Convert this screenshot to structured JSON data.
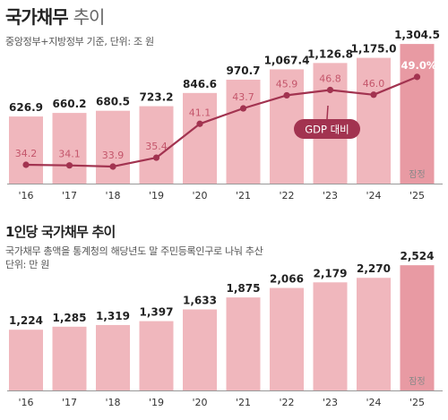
{
  "colors": {
    "bar": "#f0b7bd",
    "bar_last": "#e89aa3",
    "line": "#a23350",
    "label_in_bar": "#c4566b",
    "baseline": "#999999"
  },
  "header": {
    "title_main": "국가채무",
    "title_light": "추이",
    "subtitle": "중앙정부+지방정부 기준, 단위: 조 원"
  },
  "section2": {
    "title": "1인당 국가채무 추이",
    "note": "국가채무 총액을 통계청의 해당년도 말 주민등록인구로 나눠 추산",
    "unit": "단위: 만 원"
  },
  "chart_data": [
    {
      "type": "bar",
      "title": "국가채무 추이",
      "subtitle": "중앙정부+지방정부 기준, 단위: 조 원",
      "categories": [
        "'16",
        "'17",
        "'18",
        "'19",
        "'20",
        "'21",
        "'22",
        "'23",
        "'24",
        "'25"
      ],
      "value_labels": [
        "626.9",
        "660.2",
        "680.5",
        "723.2",
        "846.6",
        "970.7",
        "1,067.4",
        "1,126.8",
        "1,175.0",
        "1,304.5"
      ],
      "series": [
        {
          "values": [
            626.9,
            660.2,
            680.5,
            723.2,
            846.6,
            970.7,
            1067.4,
            1126.8,
            1175.0,
            1304.5
          ]
        },
        {
          "name": "GDP 대비",
          "type": "line",
          "values": [
            34.2,
            34.1,
            33.9,
            35.4,
            41.1,
            43.7,
            45.9,
            46.8,
            46.0,
            49.0
          ],
          "value_labels": [
            "34.2",
            "34.1",
            "33.9",
            "35.4",
            "41.1",
            "43.7",
            "45.9",
            "46.8",
            "46.0",
            "49.0%"
          ]
        }
      ],
      "annotations": [
        "잠정"
      ],
      "legend": "GDP 대비"
    },
    {
      "type": "bar",
      "title": "1인당 국가채무 추이",
      "ylabel": "단위: 만 원",
      "categories": [
        "'16",
        "'17",
        "'18",
        "'19",
        "'20",
        "'21",
        "'22",
        "'23",
        "'24",
        "'25"
      ],
      "value_labels": [
        "1,224",
        "1,285",
        "1,319",
        "1,397",
        "1,633",
        "1,875",
        "2,066",
        "2,179",
        "2,270",
        "2,524"
      ],
      "series": [
        {
          "values": [
            1224,
            1285,
            1319,
            1397,
            1633,
            1875,
            2066,
            2179,
            2270,
            2524
          ]
        }
      ],
      "annotations": [
        "잠정"
      ]
    }
  ]
}
